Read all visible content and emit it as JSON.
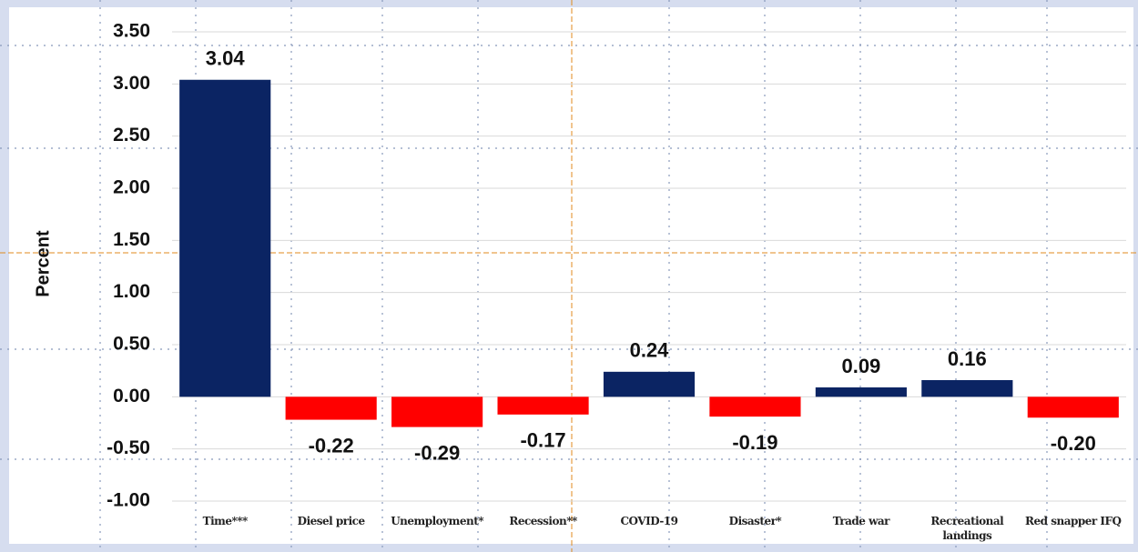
{
  "chart_data": {
    "type": "bar",
    "y_label": "Percent",
    "categories": [
      "Time***",
      "Diesel price",
      "Unemployment*",
      "Recession**",
      "COVID-19",
      "Disaster*",
      "Trade war",
      "Recreational landings",
      "Red snapper IFQ"
    ],
    "values": [
      3.04,
      -0.22,
      -0.29,
      -0.17,
      0.24,
      -0.19,
      0.09,
      0.16,
      -0.2
    ],
    "value_labels": [
      "3.04",
      "-0.22",
      "-0.29",
      "-0.17",
      "0.24",
      "-0.19",
      "0.09",
      "0.16",
      "-0.20"
    ],
    "colors": [
      "#0b2463",
      "#ff0000",
      "#ff0000",
      "#ff0000",
      "#0b2463",
      "#ff0000",
      "#0b2463",
      "#0b2463",
      "#ff0000"
    ],
    "ylim": [
      -1,
      3.5
    ],
    "yticks": [
      {
        "value": -1,
        "label": "-1.00"
      },
      {
        "value": -0.5,
        "label": "-0.50"
      },
      {
        "value": 0,
        "label": "0.00"
      },
      {
        "value": 0.5,
        "label": "0.50"
      },
      {
        "value": 1,
        "label": "1.00"
      },
      {
        "value": 1.5,
        "label": "1.50"
      },
      {
        "value": 2,
        "label": "2.00"
      },
      {
        "value": 2.5,
        "label": "2.50"
      },
      {
        "value": 3,
        "label": "3.00"
      },
      {
        "value": 3.5,
        "label": "3.50"
      }
    ],
    "grid": true
  }
}
